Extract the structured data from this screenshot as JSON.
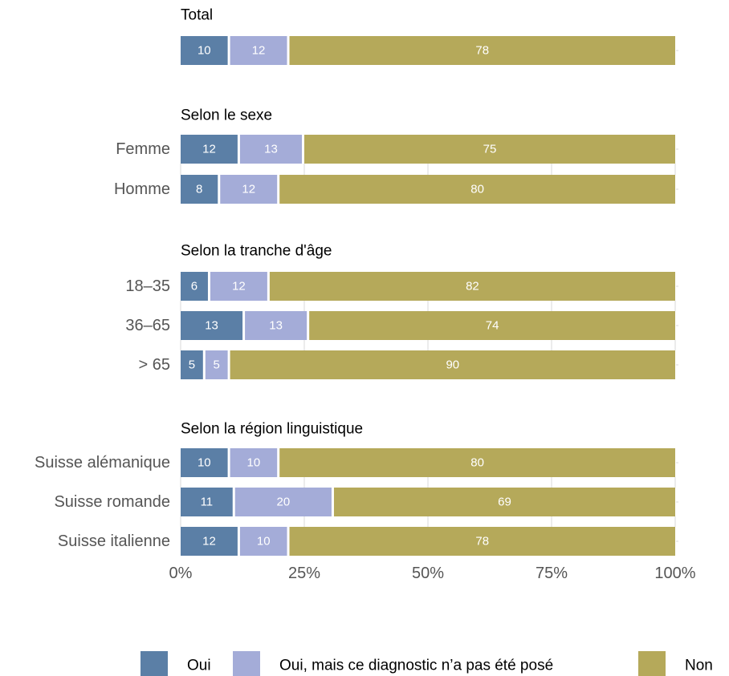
{
  "chart_data": {
    "type": "bar",
    "orientation": "horizontal",
    "stacked": "percent",
    "xlim": [
      0,
      100
    ],
    "x_ticks": [
      "0%",
      "25%",
      "50%",
      "75%",
      "100%"
    ],
    "x_tick_values": [
      0,
      25,
      50,
      75,
      100
    ],
    "grid": true,
    "legend_position": "bottom",
    "series": [
      {
        "name": "Oui",
        "color": "#5b7fa6"
      },
      {
        "name": "Oui, mais ce diagnostic n’a pas été posé",
        "color": "#a4acd8"
      },
      {
        "name": "Non",
        "color": "#b5a95a"
      }
    ],
    "groups": [
      {
        "title": "Total",
        "rows": [
          {
            "label": "",
            "values": [
              10,
              12,
              78
            ]
          }
        ]
      },
      {
        "title": "Selon le sexe",
        "rows": [
          {
            "label": "Femme",
            "values": [
              12,
              13,
              75
            ]
          },
          {
            "label": "Homme",
            "values": [
              8,
              12,
              80
            ]
          }
        ]
      },
      {
        "title": "Selon la tranche d'âge",
        "rows": [
          {
            "label": "18–35",
            "values": [
              6,
              12,
              82
            ]
          },
          {
            "label": "36–65",
            "values": [
              13,
              13,
              74
            ]
          },
          {
            "label": "> 65",
            "values": [
              5,
              5,
              90
            ]
          }
        ]
      },
      {
        "title": "Selon la région linguistique",
        "rows": [
          {
            "label": "Suisse alémanique",
            "values": [
              10,
              10,
              80
            ]
          },
          {
            "label": "Suisse romande",
            "values": [
              11,
              20,
              69
            ]
          },
          {
            "label": "Suisse italienne",
            "values": [
              12,
              10,
              78
            ]
          }
        ]
      }
    ]
  }
}
